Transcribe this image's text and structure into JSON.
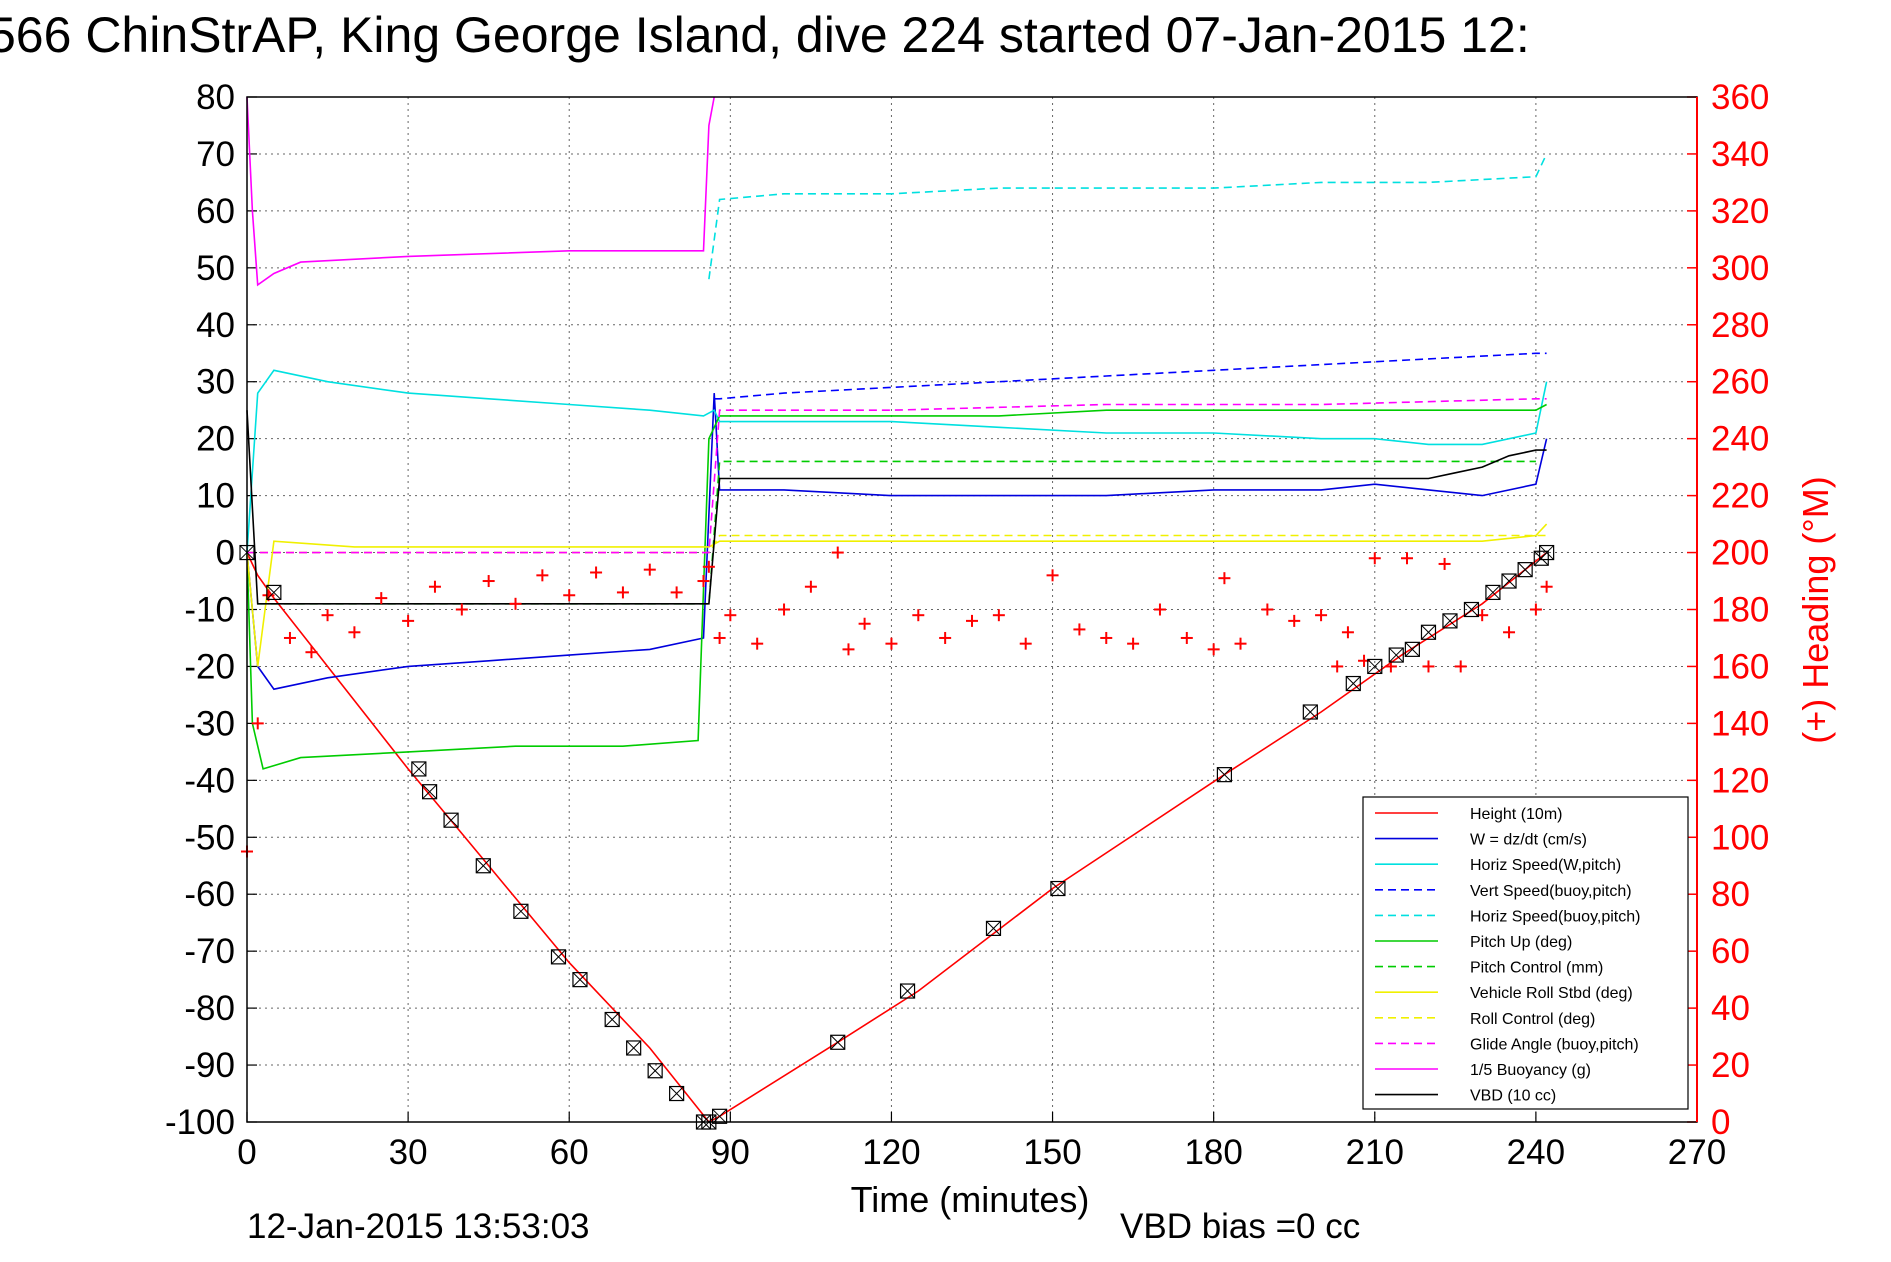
{
  "colors": {
    "height": "#ff0000",
    "w": "#0000dd",
    "horiz_speed": "#00e0e0",
    "vert_speed_buoy": "#0000ff",
    "horiz_speed_buoy": "#00e0e0",
    "pitch_up": "#00cc00",
    "pitch_control": "#00cc00",
    "roll": "#f0f000",
    "roll_control": "#f0f000",
    "glide_angle": "#ff00ff",
    "buoyancy": "#ff00ff",
    "vbd": "#000000",
    "heading": "#ff0000",
    "right_axis": "#ff0000",
    "grid": "#666666"
  },
  "chart_data": {
    "type": "line",
    "title": "566 ChinStrAP, King George Island, dive 224 started 07-Jan-2015 12:",
    "xlabel": "Time (minutes)",
    "ylabel_right": "(+) Heading (°M)",
    "xlim": [
      0,
      270
    ],
    "ylim": [
      -100,
      80
    ],
    "ylim_right": [
      0,
      360
    ],
    "x_ticks": [
      0,
      30,
      60,
      90,
      120,
      150,
      180,
      210,
      240,
      270
    ],
    "y_ticks": [
      -100,
      -90,
      -80,
      -70,
      -60,
      -50,
      -40,
      -30,
      -20,
      -10,
      0,
      10,
      20,
      30,
      40,
      50,
      60,
      70,
      80
    ],
    "y2_ticks": [
      0,
      20,
      40,
      60,
      80,
      100,
      120,
      140,
      160,
      180,
      200,
      220,
      240,
      260,
      280,
      300,
      320,
      340,
      360
    ],
    "grid": true,
    "legend_position": "bottom-right",
    "footer_left": "12-Jan-2015 13:53:03",
    "footer_right": "VBD bias =0 cc",
    "series": [
      {
        "name": "Height (10m)",
        "key": "height",
        "style": "solid",
        "x": [
          0,
          2,
          5,
          30,
          45,
          60,
          75,
          86,
          88,
          110,
          125,
          150,
          182,
          200,
          215,
          230,
          242
        ],
        "y": [
          0,
          -4,
          -8,
          -38,
          -55,
          -72,
          -87,
          -100,
          -99,
          -86,
          -77,
          -59,
          -39,
          -28,
          -18,
          -9,
          0
        ]
      },
      {
        "name": "W = dz/dt (cm/s)",
        "key": "w",
        "style": "solid",
        "x": [
          0,
          2,
          5,
          15,
          30,
          45,
          60,
          75,
          85,
          87,
          88,
          100,
          120,
          140,
          160,
          180,
          200,
          210,
          220,
          230,
          240,
          242
        ],
        "y": [
          0,
          -20,
          -24,
          -22,
          -20,
          -19,
          -18,
          -17,
          -15,
          28,
          11,
          11,
          10,
          10,
          10,
          11,
          11,
          12,
          11,
          10,
          12,
          20
        ]
      },
      {
        "name": "Horiz Speed(W,pitch)",
        "key": "horiz_speed",
        "style": "solid",
        "x": [
          0,
          2,
          5,
          15,
          30,
          45,
          60,
          75,
          85,
          87,
          88,
          100,
          120,
          140,
          160,
          180,
          200,
          210,
          220,
          230,
          240,
          242
        ],
        "y": [
          0,
          28,
          32,
          30,
          28,
          27,
          26,
          25,
          24,
          25,
          23,
          23,
          23,
          22,
          21,
          21,
          20,
          20,
          19,
          19,
          21,
          30
        ]
      },
      {
        "name": "Vert Speed(buoy,pitch)",
        "key": "vert_speed_buoy",
        "style": "dashed",
        "x": [
          87,
          88,
          100,
          120,
          140,
          160,
          180,
          200,
          220,
          240,
          242
        ],
        "y": [
          27,
          27,
          28,
          29,
          30,
          31,
          32,
          33,
          34,
          35,
          35
        ]
      },
      {
        "name": "Horiz Speed(buoy,pitch)",
        "key": "horiz_speed_buoy",
        "style": "dashed",
        "x": [
          86,
          88,
          100,
          120,
          140,
          160,
          180,
          200,
          220,
          240,
          242
        ],
        "y": [
          48,
          62,
          63,
          63,
          64,
          64,
          64,
          65,
          65,
          66,
          70
        ]
      },
      {
        "name": "Pitch Up (deg)",
        "key": "pitch_up",
        "style": "solid",
        "x": [
          0,
          1,
          3,
          10,
          30,
          50,
          70,
          84,
          86,
          88,
          100,
          120,
          140,
          160,
          180,
          200,
          220,
          240,
          242
        ],
        "y": [
          0,
          -30,
          -38,
          -36,
          -35,
          -34,
          -34,
          -33,
          20,
          24,
          24,
          24,
          24,
          25,
          25,
          25,
          25,
          25,
          26
        ]
      },
      {
        "name": "Pitch Control (mm)",
        "key": "pitch_control",
        "style": "dashed",
        "x": [
          2,
          86,
          88,
          120,
          180,
          240
        ],
        "y": [
          -9,
          -9,
          16,
          16,
          16,
          16
        ]
      },
      {
        "name": "Vehicle Roll Stbd (deg)",
        "key": "roll",
        "style": "solid",
        "x": [
          0,
          2,
          5,
          20,
          40,
          60,
          80,
          86,
          88,
          120,
          160,
          200,
          230,
          240,
          242
        ],
        "y": [
          0,
          -20,
          2,
          1,
          1,
          1,
          1,
          1,
          2,
          2,
          2,
          2,
          2,
          3,
          5
        ]
      },
      {
        "name": "Roll Control (deg)",
        "key": "roll_control",
        "style": "dashed",
        "x": [
          0,
          86,
          88,
          242
        ],
        "y": [
          0,
          0,
          3,
          3
        ]
      },
      {
        "name": "Glide Angle (buoy,pitch)",
        "key": "glide_angle",
        "style": "dashed",
        "x": [
          0,
          86,
          88,
          120,
          160,
          200,
          240,
          242
        ],
        "y": [
          0,
          0,
          25,
          25,
          26,
          26,
          27,
          27
        ]
      },
      {
        "name": "1/5 Buoyancy (g)",
        "key": "buoyancy",
        "style": "solid",
        "x": [
          0,
          1,
          2,
          5,
          10,
          30,
          60,
          85,
          86,
          87
        ],
        "y": [
          80,
          60,
          47,
          49,
          51,
          52,
          53,
          53,
          75,
          80
        ]
      },
      {
        "name": "VBD (10 cc)",
        "key": "vbd",
        "style": "solid",
        "x": [
          0,
          2,
          86,
          88,
          120,
          180,
          200,
          210,
          220,
          225,
          230,
          235,
          240,
          242
        ],
        "y": [
          25,
          -9,
          -9,
          13,
          13,
          13,
          13,
          13,
          13,
          14,
          15,
          17,
          18,
          18
        ]
      }
    ],
    "heading_series": {
      "name": "Heading (deg M)",
      "axis": "right",
      "marker": "+",
      "x": [
        0,
        2,
        4,
        8,
        12,
        15,
        20,
        25,
        30,
        35,
        40,
        45,
        50,
        55,
        60,
        65,
        70,
        75,
        80,
        85,
        86,
        88,
        90,
        95,
        100,
        105,
        110,
        112,
        115,
        120,
        125,
        130,
        135,
        140,
        145,
        150,
        155,
        160,
        165,
        170,
        175,
        180,
        182,
        185,
        190,
        195,
        200,
        203,
        205,
        208,
        210,
        213,
        216,
        220,
        223,
        226,
        230,
        235,
        240,
        242
      ],
      "y": [
        95,
        140,
        185,
        170,
        165,
        178,
        172,
        184,
        176,
        188,
        180,
        190,
        182,
        192,
        185,
        193,
        186,
        194,
        186,
        190,
        195,
        170,
        178,
        168,
        180,
        188,
        200,
        166,
        175,
        168,
        178,
        170,
        176,
        178,
        168,
        192,
        173,
        170,
        168,
        180,
        170,
        166,
        191,
        168,
        180,
        176,
        178,
        160,
        172,
        162,
        198,
        160,
        198,
        160,
        196,
        160,
        178,
        172,
        180,
        188
      ]
    },
    "depth_markers": {
      "name": "Depth samples",
      "x": [
        0,
        5,
        32,
        34,
        38,
        44,
        51,
        58,
        62,
        68,
        72,
        76,
        80,
        85,
        86,
        88,
        110,
        123,
        139,
        151,
        182,
        198,
        206,
        210,
        214,
        217,
        220,
        224,
        228,
        232,
        235,
        238,
        241,
        242
      ],
      "y": [
        0,
        -7,
        -38,
        -42,
        -47,
        -55,
        -63,
        -71,
        -75,
        -82,
        -87,
        -91,
        -95,
        -100,
        -100,
        -99,
        -86,
        -77,
        -66,
        -59,
        -39,
        -28,
        -23,
        -20,
        -18,
        -17,
        -14,
        -12,
        -10,
        -7,
        -5,
        -3,
        -1,
        0
      ]
    }
  }
}
